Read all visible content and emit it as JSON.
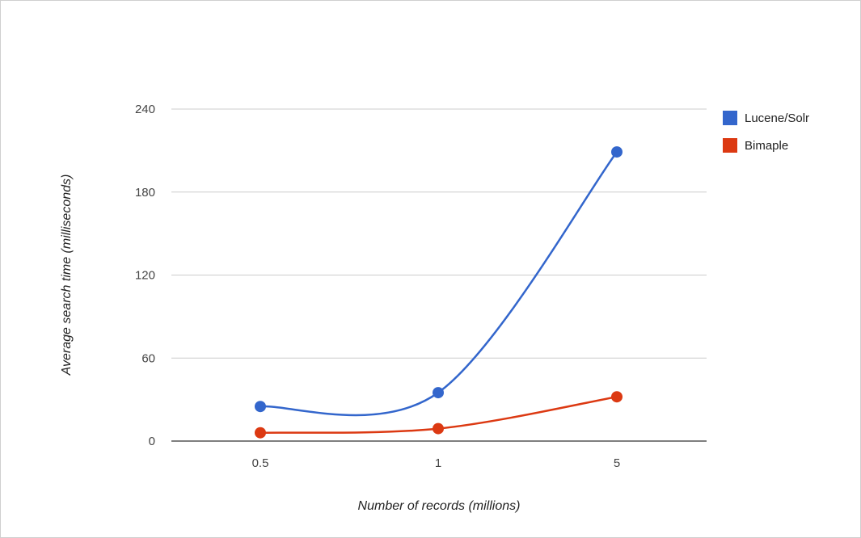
{
  "chart_data": {
    "type": "line",
    "title": "",
    "xlabel": "Number of records (millions)",
    "ylabel": "Average search time (milliseconds)",
    "categories": [
      "0.5",
      "1",
      "5"
    ],
    "ylim": [
      0,
      240
    ],
    "yticks": [
      "0",
      "60",
      "120",
      "180",
      "240"
    ],
    "grid": true,
    "smooth": true,
    "legend_position": "right",
    "series": [
      {
        "name": "Lucene/Solr",
        "color": "#3366cc",
        "values": [
          25,
          35,
          209
        ]
      },
      {
        "name": "Bimaple",
        "color": "#dc3912",
        "values": [
          6,
          9,
          32
        ]
      }
    ]
  }
}
